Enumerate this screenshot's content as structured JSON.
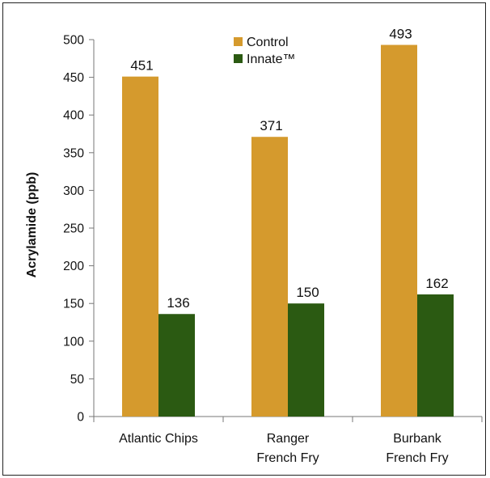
{
  "chart_data": {
    "type": "bar",
    "title": "",
    "xlabel": "",
    "ylabel": "Acrylamide (ppb)",
    "ylim": [
      0,
      500
    ],
    "yticks": [
      0,
      50,
      100,
      150,
      200,
      250,
      300,
      350,
      400,
      450,
      500
    ],
    "categories": [
      [
        "Atlantic Chips"
      ],
      [
        "Ranger",
        "French Fry"
      ],
      [
        "Burbank",
        "French Fry"
      ]
    ],
    "series": [
      {
        "name": "Control",
        "color": "#d59a2d",
        "values": [
          451,
          371,
          493
        ]
      },
      {
        "name": "Innate™",
        "color": "#2b5a12",
        "values": [
          136,
          150,
          162
        ]
      }
    ],
    "data_labels": true,
    "grid": false,
    "legend": "top-center"
  }
}
